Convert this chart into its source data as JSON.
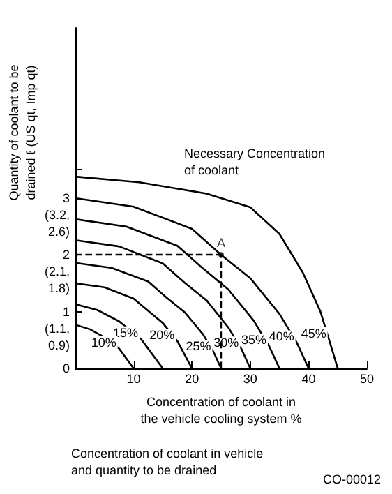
{
  "chart_data": {
    "type": "line",
    "title": "Concentration of coolant in vehicle\nand quantity to be drained",
    "xlabel": "Concentration of coolant in\nthe vehicle cooling system %",
    "ylabel": "Quantity of coolant to be\ndrained ℓ (US qt, Imp qt)",
    "annotations": [
      "Necessary Concentration\nof coolant",
      {
        "text": "A",
        "x": 25,
        "y": 2
      },
      "CO-00012",
      "(1.1,\n0.9)",
      "(2.1,\n1.8)",
      "(3.2,\n2.6)"
    ],
    "xlim": [
      0,
      50
    ],
    "xticks": [
      10,
      20,
      30,
      40,
      50
    ],
    "ylim": [
      0,
      6
    ],
    "yticks": [
      0,
      1,
      2,
      3,
      {
        "value": 3.5,
        "label": null
      }
    ],
    "grid": false,
    "legend": false,
    "marker": "none",
    "line_style": "solid",
    "series": [
      {
        "name": "45%",
        "color": "#000000",
        "x": [
          0,
          11,
          22.5,
          30,
          35,
          39,
          42,
          43.5,
          45
        ],
        "values": [
          3.38,
          3.28,
          3.08,
          2.84,
          2.37,
          1.69,
          1.01,
          0.51,
          0
        ]
      },
      {
        "name": "40%",
        "color": "#000000",
        "x": [
          0,
          10,
          20,
          25,
          30,
          35,
          38,
          40
        ],
        "values": [
          3.0,
          2.85,
          2.46,
          2.0,
          1.59,
          0.96,
          0.45,
          0
        ]
      },
      {
        "name": "35%",
        "color": "#000000",
        "x": [
          0,
          8.75,
          17.5,
          21.9,
          26.25,
          30.6,
          33.25,
          35
        ],
        "values": [
          2.63,
          2.5,
          2.16,
          1.76,
          1.39,
          0.84,
          0.39,
          0
        ]
      },
      {
        "name": "30%",
        "color": "#000000",
        "x": [
          0,
          7.5,
          15,
          18.75,
          22.5,
          26.25,
          28.5,
          30
        ],
        "values": [
          2.26,
          2.15,
          1.85,
          1.51,
          1.2,
          0.72,
          0.34,
          0
        ]
      },
      {
        "name": "25%",
        "color": "#000000",
        "x": [
          0,
          6.25,
          12.5,
          15.6,
          18.75,
          21.9,
          23.75,
          25
        ],
        "values": [
          1.86,
          1.77,
          1.53,
          1.25,
          0.99,
          0.6,
          0.28,
          0
        ]
      },
      {
        "name": "20%",
        "color": "#000000",
        "x": [
          0,
          5,
          10,
          15,
          17.5,
          20
        ],
        "values": [
          1.5,
          1.43,
          1.23,
          0.8,
          0.48,
          0
        ]
      },
      {
        "name": "15%",
        "color": "#000000",
        "x": [
          0,
          3.75,
          7.5,
          11.25,
          15
        ],
        "values": [
          1.13,
          1.03,
          0.83,
          0.52,
          0
        ]
      },
      {
        "name": "10%",
        "color": "#000000",
        "x": [
          0,
          2.5,
          5,
          7.5,
          10
        ],
        "values": [
          0.77,
          0.69,
          0.55,
          0.35,
          0
        ]
      }
    ]
  }
}
